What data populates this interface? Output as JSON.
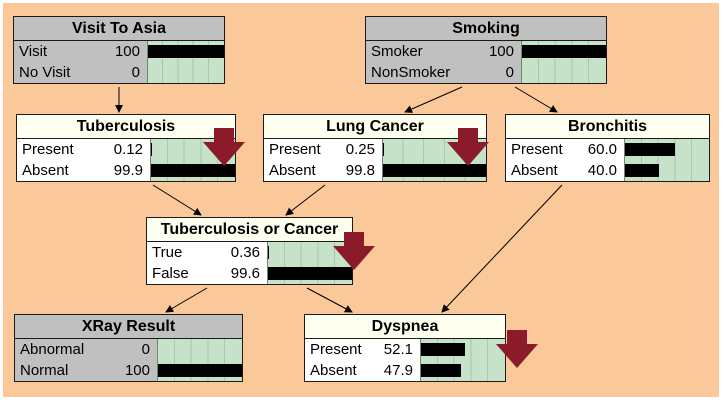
{
  "nodes": [
    {
      "id": "visit-to-asia",
      "title": "Visit To Asia",
      "state": "observed",
      "rows": [
        {
          "label": "Visit",
          "value": "100",
          "pct": 100
        },
        {
          "label": "No Visit",
          "value": "0",
          "pct": 0
        }
      ]
    },
    {
      "id": "smoking",
      "title": "Smoking",
      "state": "observed",
      "rows": [
        {
          "label": "Smoker",
          "value": "100",
          "pct": 100
        },
        {
          "label": "NonSmoker",
          "value": "0",
          "pct": 0
        }
      ]
    },
    {
      "id": "tuberculosis",
      "title": "Tuberculosis",
      "state": "updated",
      "rows": [
        {
          "label": "Present",
          "value": "0.12",
          "pct": 0.12
        },
        {
          "label": "Absent",
          "value": "99.9",
          "pct": 99.9
        }
      ]
    },
    {
      "id": "lung-cancer",
      "title": "Lung Cancer",
      "state": "updated",
      "rows": [
        {
          "label": "Present",
          "value": "0.25",
          "pct": 0.25
        },
        {
          "label": "Absent",
          "value": "99.8",
          "pct": 99.8
        }
      ]
    },
    {
      "id": "bronchitis",
      "title": "Bronchitis",
      "state": "updated",
      "rows": [
        {
          "label": "Present",
          "value": "60.0",
          "pct": 60.0
        },
        {
          "label": "Absent",
          "value": "40.0",
          "pct": 40.0
        }
      ]
    },
    {
      "id": "tuberculosis-or-cancer",
      "title": "Tuberculosis or Cancer",
      "state": "updated",
      "rows": [
        {
          "label": "True",
          "value": "0.36",
          "pct": 0.36
        },
        {
          "label": "False",
          "value": "99.6",
          "pct": 99.6
        }
      ]
    },
    {
      "id": "xray-result",
      "title": "XRay Result",
      "state": "observed",
      "rows": [
        {
          "label": "Abnormal",
          "value": "0",
          "pct": 0
        },
        {
          "label": "Normal",
          "value": "100",
          "pct": 100
        }
      ]
    },
    {
      "id": "dyspnea",
      "title": "Dyspnea",
      "state": "updated",
      "rows": [
        {
          "label": "Present",
          "value": "52.1",
          "pct": 52.1
        },
        {
          "label": "Absent",
          "value": "47.9",
          "pct": 47.9
        }
      ]
    }
  ],
  "edges": [
    [
      "visit-to-asia",
      "tuberculosis"
    ],
    [
      "smoking",
      "lung-cancer"
    ],
    [
      "smoking",
      "bronchitis"
    ],
    [
      "tuberculosis",
      "tuberculosis-or-cancer"
    ],
    [
      "lung-cancer",
      "tuberculosis-or-cancer"
    ],
    [
      "tuberculosis-or-cancer",
      "xray-result"
    ],
    [
      "tuberculosis-or-cancer",
      "dyspnea"
    ],
    [
      "bronchitis",
      "dyspnea"
    ]
  ],
  "colors": {
    "background": "#fbc89a",
    "observed_node": "#c0c0c0",
    "updated_title": "#fffff0",
    "belief_bar_area": "#c6e2c8",
    "belief_bar": "#000000",
    "update_arrow": "#8b1a2b"
  },
  "update_arrow_icon": "down-arrow-icon"
}
